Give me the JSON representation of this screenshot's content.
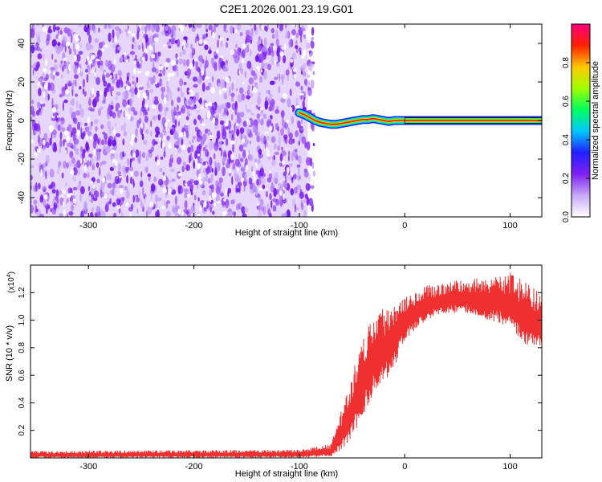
{
  "title": "C2E1.2026.001.23.19.G01",
  "chart_data": [
    {
      "type": "heatmap",
      "xlabel": "Height of straight line (km)",
      "ylabel": "Frequency (Hz)",
      "xlim": [
        -355,
        130
      ],
      "ylim": [
        -50,
        50
      ],
      "xticks": [
        -300,
        -200,
        -100,
        0,
        100
      ],
      "yticks": [
        -40,
        -20,
        0,
        20,
        40
      ],
      "noise_region_x": [
        -355,
        -92
      ],
      "track": [
        [
          -100,
          4
        ],
        [
          -95,
          3
        ],
        [
          -90,
          1.5
        ],
        [
          -85,
          0
        ],
        [
          -80,
          -1
        ],
        [
          -75,
          -1.5
        ],
        [
          -70,
          -2
        ],
        [
          -65,
          -2
        ],
        [
          -60,
          -1.5
        ],
        [
          -55,
          -1
        ],
        [
          -50,
          -0.5
        ],
        [
          -45,
          0
        ],
        [
          -40,
          0.5
        ],
        [
          -35,
          0.5
        ],
        [
          -30,
          1
        ],
        [
          -25,
          0.5
        ],
        [
          -20,
          0
        ],
        [
          -15,
          -0.5
        ],
        [
          -10,
          0
        ],
        [
          0,
          0
        ],
        [
          50,
          0
        ],
        [
          130,
          0
        ]
      ],
      "colorbar": {
        "label": "Normalized spectral amplitude",
        "range": [
          0,
          1
        ],
        "ticks": [
          "0.0",
          "0.2",
          "0.4",
          "0.6",
          "0.8"
        ],
        "colors": [
          "#ffffff",
          "#c8a8f8",
          "#7f20f0",
          "#2020ff",
          "#00c8ff",
          "#00ff60",
          "#a0ff00",
          "#ffc800",
          "#ff2000",
          "#ff0080"
        ]
      }
    },
    {
      "type": "line",
      "xlabel": "Height of straight line (km)",
      "ylabel": "SNR (10 * v/v)",
      "scale_label": "(x10",
      "scale_exp": "4",
      "xlim": [
        -355,
        130
      ],
      "ylim": [
        0,
        1.4
      ],
      "xticks": [
        -300,
        -200,
        -100,
        0,
        100
      ],
      "yticks": [
        "0.2",
        "0.4",
        "0.6",
        "0.8",
        "1.0",
        "1.2"
      ],
      "color": "#f03030",
      "envelope": {
        "x": [
          -355,
          -100,
          -70,
          -60,
          -50,
          -40,
          -30,
          -20,
          -10,
          0,
          20,
          40,
          60,
          80,
          100,
          110,
          120,
          130
        ],
        "low": [
          0.0,
          0.0,
          0.01,
          0.05,
          0.15,
          0.3,
          0.45,
          0.55,
          0.65,
          0.85,
          1.0,
          1.05,
          1.05,
          1.0,
          0.95,
          0.85,
          0.8,
          0.78
        ],
        "high": [
          0.05,
          0.06,
          0.1,
          0.35,
          0.6,
          0.9,
          1.05,
          1.1,
          1.15,
          1.2,
          1.25,
          1.28,
          1.3,
          1.32,
          1.35,
          1.3,
          1.25,
          1.2
        ]
      }
    }
  ]
}
